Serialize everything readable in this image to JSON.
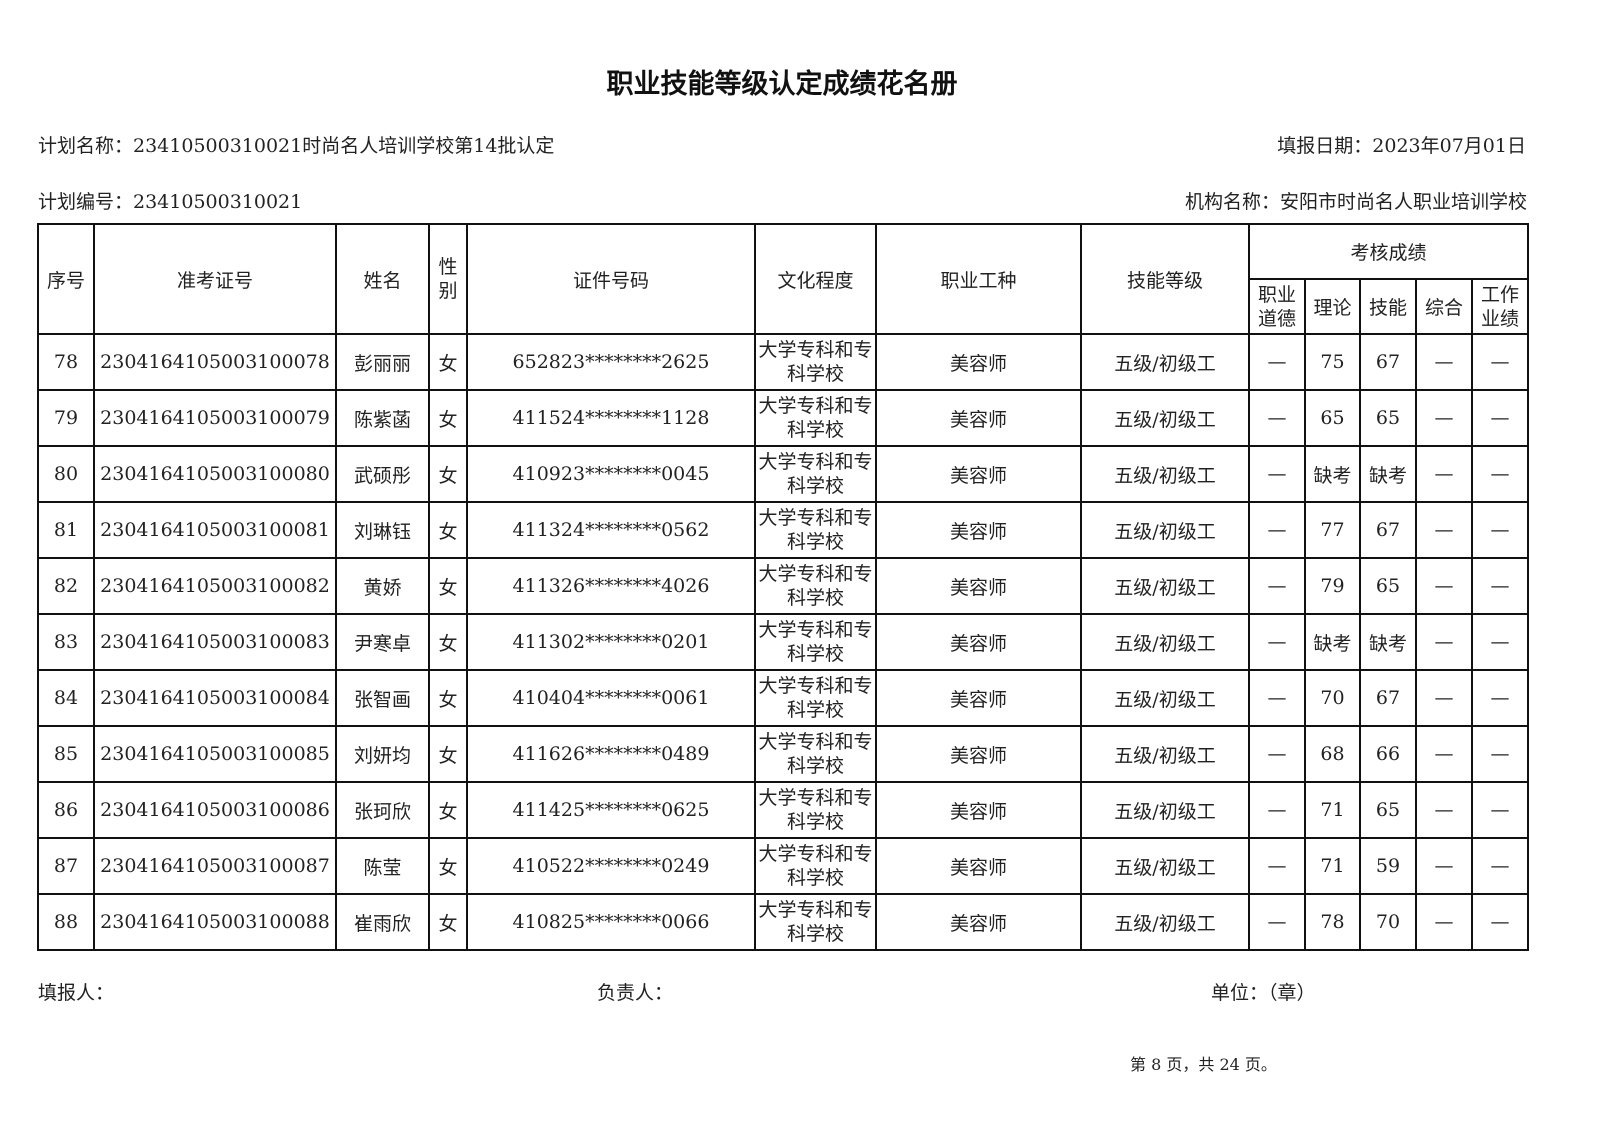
{
  "title": "职业技能等级认定成绩花名册",
  "plan_name": "计划名称：23410500310021时尚名人培训学校第14批认定",
  "report_date": "填报日期：2023年07月01日",
  "plan_no": "计划编号：23410500310021",
  "org_name": "机构名称：安阳市时尚名人职业培训学校",
  "headers": {
    "seq": "序号",
    "ticket": "准考证号",
    "name": "姓名",
    "gender": "性别",
    "id": "证件号码",
    "edu": "文化程度",
    "occupation": "职业工种",
    "level": "技能等级",
    "scores": "考核成绩",
    "ethics": "职业道德",
    "theory": "理论",
    "skill": "技能",
    "overall": "综合",
    "work": "工作业绩"
  },
  "rows": [
    {
      "seq": "78",
      "ticket": "2304164105003100078",
      "name": "彭丽丽",
      "gender": "女",
      "id": "652823********2625",
      "edu": "大学专科和专科学校",
      "occupation": "美容师",
      "level": "五级/初级工",
      "ethics": "—",
      "theory": "75",
      "skill": "67",
      "overall": "—",
      "work": "—"
    },
    {
      "seq": "79",
      "ticket": "2304164105003100079",
      "name": "陈紫菡",
      "gender": "女",
      "id": "411524********1128",
      "edu": "大学专科和专科学校",
      "occupation": "美容师",
      "level": "五级/初级工",
      "ethics": "—",
      "theory": "65",
      "skill": "65",
      "overall": "—",
      "work": "—"
    },
    {
      "seq": "80",
      "ticket": "2304164105003100080",
      "name": "武硕彤",
      "gender": "女",
      "id": "410923********0045",
      "edu": "大学专科和专科学校",
      "occupation": "美容师",
      "level": "五级/初级工",
      "ethics": "—",
      "theory": "缺考",
      "skill": "缺考",
      "overall": "—",
      "work": "—"
    },
    {
      "seq": "81",
      "ticket": "2304164105003100081",
      "name": "刘琳钰",
      "gender": "女",
      "id": "411324********0562",
      "edu": "大学专科和专科学校",
      "occupation": "美容师",
      "level": "五级/初级工",
      "ethics": "—",
      "theory": "77",
      "skill": "67",
      "overall": "—",
      "work": "—"
    },
    {
      "seq": "82",
      "ticket": "2304164105003100082",
      "name": "黄娇",
      "gender": "女",
      "id": "411326********4026",
      "edu": "大学专科和专科学校",
      "occupation": "美容师",
      "level": "五级/初级工",
      "ethics": "—",
      "theory": "79",
      "skill": "65",
      "overall": "—",
      "work": "—"
    },
    {
      "seq": "83",
      "ticket": "2304164105003100083",
      "name": "尹寒卓",
      "gender": "女",
      "id": "411302********0201",
      "edu": "大学专科和专科学校",
      "occupation": "美容师",
      "level": "五级/初级工",
      "ethics": "—",
      "theory": "缺考",
      "skill": "缺考",
      "overall": "—",
      "work": "—"
    },
    {
      "seq": "84",
      "ticket": "2304164105003100084",
      "name": "张智画",
      "gender": "女",
      "id": "410404********0061",
      "edu": "大学专科和专科学校",
      "occupation": "美容师",
      "level": "五级/初级工",
      "ethics": "—",
      "theory": "70",
      "skill": "67",
      "overall": "—",
      "work": "—"
    },
    {
      "seq": "85",
      "ticket": "2304164105003100085",
      "name": "刘妍均",
      "gender": "女",
      "id": "411626********0489",
      "edu": "大学专科和专科学校",
      "occupation": "美容师",
      "level": "五级/初级工",
      "ethics": "—",
      "theory": "68",
      "skill": "66",
      "overall": "—",
      "work": "—"
    },
    {
      "seq": "86",
      "ticket": "2304164105003100086",
      "name": "张珂欣",
      "gender": "女",
      "id": "411425********0625",
      "edu": "大学专科和专科学校",
      "occupation": "美容师",
      "level": "五级/初级工",
      "ethics": "—",
      "theory": "71",
      "skill": "65",
      "overall": "—",
      "work": "—"
    },
    {
      "seq": "87",
      "ticket": "2304164105003100087",
      "name": "陈莹",
      "gender": "女",
      "id": "410522********0249",
      "edu": "大学专科和专科学校",
      "occupation": "美容师",
      "level": "五级/初级工",
      "ethics": "—",
      "theory": "71",
      "skill": "59",
      "overall": "—",
      "work": "—"
    },
    {
      "seq": "88",
      "ticket": "2304164105003100088",
      "name": "崔雨欣",
      "gender": "女",
      "id": "410825********0066",
      "edu": "大学专科和专科学校",
      "occupation": "美容师",
      "level": "五级/初级工",
      "ethics": "—",
      "theory": "78",
      "skill": "70",
      "overall": "—",
      "work": "—"
    }
  ],
  "footer": {
    "filler": "填报人：",
    "manager": "负责人：",
    "unit": "单位：（章）",
    "page": "第 8 页，共 24 页。"
  }
}
